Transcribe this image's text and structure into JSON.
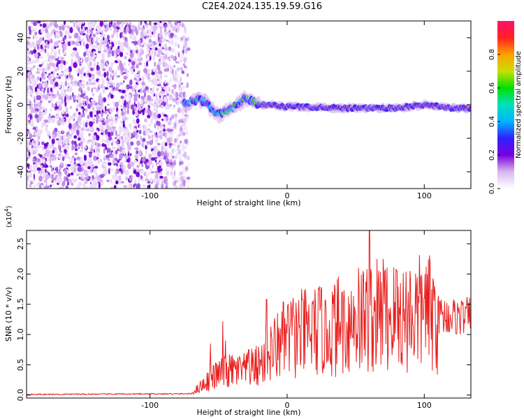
{
  "title": "C2E4.2024.135.19.59.G16",
  "colors": {
    "snr_line": "#e8201e",
    "axis": "#000000",
    "bg": "#ffffff"
  },
  "chart_data": [
    {
      "type": "heatmap",
      "name": "spectrogram",
      "xlabel": "Height of straight line (km)",
      "ylabel": "Frequency (Hz)",
      "xlim": [
        -190,
        134
      ],
      "ylim": [
        -50,
        50
      ],
      "x_ticks": [
        -100,
        0,
        100
      ],
      "y_ticks": [
        -40,
        -20,
        0,
        20,
        40
      ],
      "colorbar": {
        "label": "Normalized spectral amplitude",
        "range": [
          0.0,
          1.0
        ],
        "ticks": [
          "0.0",
          "0.2",
          "0.4",
          "0.6",
          "0.8"
        ],
        "colormap": [
          "#ffffff",
          "#d8b8f0",
          "#7a00e0",
          "#3020ff",
          "#00b4ff",
          "#00e0c0",
          "#00e000",
          "#c8e000",
          "#ffa000",
          "#ff2020",
          "#ff1070"
        ]
      },
      "noise_region_x": [
        -190,
        -78
      ],
      "signal_trace": [
        {
          "x": -75,
          "y": 1
        },
        {
          "x": -65,
          "y": 3
        },
        {
          "x": -60,
          "y": 2
        },
        {
          "x": -55,
          "y": -3
        },
        {
          "x": -50,
          "y": -6
        },
        {
          "x": -45,
          "y": -4
        },
        {
          "x": -40,
          "y": -2
        },
        {
          "x": -35,
          "y": 1
        },
        {
          "x": -30,
          "y": 4
        },
        {
          "x": -25,
          "y": 2
        },
        {
          "x": -20,
          "y": 0
        },
        {
          "x": 0,
          "y": -1
        },
        {
          "x": 40,
          "y": -2
        },
        {
          "x": 80,
          "y": -2
        },
        {
          "x": 100,
          "y": 0
        },
        {
          "x": 120,
          "y": -2
        },
        {
          "x": 134,
          "y": -2
        }
      ]
    },
    {
      "type": "line",
      "name": "snr",
      "xlabel": "Height of straight line (km)",
      "ylabel": "SNR (10 * v/v)",
      "y_multiplier": "(x10",
      "y_multiplier_exp": "4",
      "xlim": [
        -190,
        134
      ],
      "ylim": [
        -0.05,
        2.72
      ],
      "x_ticks": [
        -100,
        0,
        100
      ],
      "y_ticks": [
        "0.0",
        "0.5",
        "1.0",
        "1.5",
        "2.0",
        "2.5"
      ],
      "envelope": [
        {
          "x": -190,
          "y": 0.01
        },
        {
          "x": -70,
          "y": 0.02
        },
        {
          "x": -60,
          "y": 0.2
        },
        {
          "x": -50,
          "y": 0.35
        },
        {
          "x": -40,
          "y": 0.4
        },
        {
          "x": -30,
          "y": 0.4
        },
        {
          "x": -20,
          "y": 0.5
        },
        {
          "x": -10,
          "y": 0.75
        },
        {
          "x": 0,
          "y": 0.95
        },
        {
          "x": 20,
          "y": 1.05
        },
        {
          "x": 40,
          "y": 1.15
        },
        {
          "x": 60,
          "y": 1.3
        },
        {
          "x": 80,
          "y": 1.3
        },
        {
          "x": 100,
          "y": 1.35
        },
        {
          "x": 120,
          "y": 1.3
        },
        {
          "x": 134,
          "y": 1.3
        }
      ],
      "peaks": [
        {
          "x": -56,
          "y": 0.85
        },
        {
          "x": -47,
          "y": 1.22
        },
        {
          "x": -45,
          "y": 0.9
        },
        {
          "x": -28,
          "y": 0.75
        },
        {
          "x": -15,
          "y": 1.58
        },
        {
          "x": -5,
          "y": 1.1
        },
        {
          "x": 5,
          "y": 1.3
        },
        {
          "x": 28,
          "y": 1.57
        },
        {
          "x": 40,
          "y": 1.7
        },
        {
          "x": 52,
          "y": 2.1
        },
        {
          "x": 60,
          "y": 2.72
        },
        {
          "x": 70,
          "y": 2.25
        },
        {
          "x": 80,
          "y": 2.05
        },
        {
          "x": 90,
          "y": 1.9
        },
        {
          "x": 100,
          "y": 1.6
        },
        {
          "x": 110,
          "y": 1.55
        }
      ]
    }
  ]
}
